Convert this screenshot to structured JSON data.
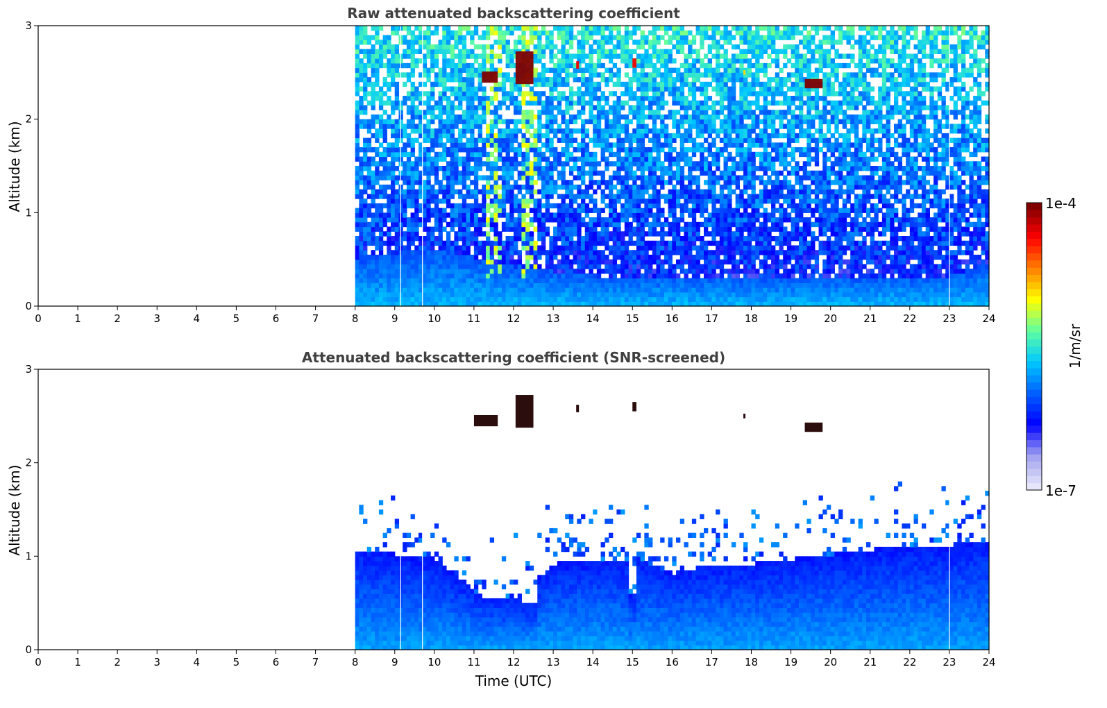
{
  "colors": {
    "background": "#ffffff",
    "title_text": "#404040",
    "axis": "#000000",
    "colormap": [
      "#e6e6fa",
      "#a0a0f0",
      "#0000ff",
      "#0060ff",
      "#00c8ff",
      "#60ffa0",
      "#ffff00",
      "#ff8000",
      "#ff0000",
      "#800000"
    ]
  },
  "chart_data": [
    {
      "type": "heatmap",
      "title": "Raw attenuated backscattering coefficient",
      "xlabel": "",
      "ylabel": "Altitude (km)",
      "xlim": [
        0,
        24
      ],
      "ylim": [
        0,
        3
      ],
      "xticks": [
        "0",
        "1",
        "2",
        "3",
        "4",
        "5",
        "6",
        "7",
        "8",
        "9",
        "10",
        "11",
        "12",
        "13",
        "14",
        "15",
        "16",
        "17",
        "18",
        "19",
        "20",
        "21",
        "22",
        "23",
        "24"
      ],
      "yticks": [
        "0",
        "1",
        "2",
        "3"
      ],
      "data_start_utc": 8,
      "data_end_utc": 24,
      "gap_lines_utc": [
        9.15,
        9.7,
        23.0
      ],
      "layers": [
        {
          "name": "boundary layer",
          "x_start": 8,
          "x_end": 24,
          "top_km": [
            0.5,
            0.55,
            0.6,
            0.5,
            0.4,
            0.35,
            0.3,
            0.3,
            0.3,
            0.3,
            0.3,
            0.3,
            0.3,
            0.3,
            0.3,
            0.3,
            0.45
          ],
          "level": 0.38
        },
        {
          "name": "noisy upper field",
          "x_start": 8,
          "x_end": 24,
          "y_bottom_km": 0.5,
          "y_top_km": 3.0,
          "level": 0.5
        }
      ],
      "clouds": [
        {
          "t0": 11.2,
          "t1": 11.6,
          "alt_km": 2.45,
          "thickness_km": 0.12,
          "level": 1.0
        },
        {
          "t0": 12.05,
          "t1": 12.5,
          "alt_km": 2.55,
          "thickness_km": 0.35,
          "level": 1.0
        },
        {
          "t0": 13.58,
          "t1": 13.65,
          "alt_km": 2.58,
          "thickness_km": 0.08,
          "level": 0.9
        },
        {
          "t0": 15.0,
          "t1": 15.1,
          "alt_km": 2.6,
          "thickness_km": 0.1,
          "level": 0.9
        },
        {
          "t0": 17.8,
          "t1": 17.85,
          "alt_km": 2.5,
          "thickness_km": 0.05,
          "level": 0.7
        },
        {
          "t0": 19.35,
          "t1": 19.8,
          "alt_km": 2.38,
          "thickness_km": 0.1,
          "level": 1.0
        }
      ],
      "plumes": [
        {
          "t0": 11.3,
          "t1": 11.6,
          "y_bottom_km": 0.3,
          "y_top_km": 3.0
        },
        {
          "t0": 12.2,
          "t1": 12.5,
          "y_bottom_km": 0.3,
          "y_top_km": 3.0
        }
      ]
    },
    {
      "type": "heatmap",
      "title": "Attenuated backscattering coefficient (SNR-screened)",
      "xlabel": "Time (UTC)",
      "ylabel": "Altitude (km)",
      "xlim": [
        0,
        24
      ],
      "ylim": [
        0,
        3
      ],
      "xticks": [
        "0",
        "1",
        "2",
        "3",
        "4",
        "5",
        "6",
        "7",
        "8",
        "9",
        "10",
        "11",
        "12",
        "13",
        "14",
        "15",
        "16",
        "17",
        "18",
        "19",
        "20",
        "21",
        "22",
        "23",
        "24"
      ],
      "yticks": [
        "0",
        "1",
        "2",
        "3"
      ],
      "data_start_utc": 8,
      "data_end_utc": 24,
      "gap_lines_utc": [
        9.15,
        9.7,
        23.0
      ],
      "screened_top_km": [
        1.05,
        1.0,
        0.95,
        0.6,
        0.55,
        0.9,
        0.95,
        0.95,
        0.8,
        0.9,
        0.9,
        0.95,
        1.0,
        1.05,
        1.1,
        1.1,
        1.15
      ],
      "notches": [
        {
          "t0": 11.2,
          "t1": 11.8,
          "depth_km": 0.55
        },
        {
          "t0": 12.2,
          "t1": 12.55,
          "depth_km": 0.48
        },
        {
          "t0": 14.9,
          "t1": 15.1,
          "depth_km": 0.6
        }
      ],
      "clouds": [
        {
          "t0": 11.0,
          "t1": 11.6,
          "alt_km": 2.45,
          "thickness_km": 0.12,
          "level": 1.0
        },
        {
          "t0": 12.05,
          "t1": 12.5,
          "alt_km": 2.55,
          "thickness_km": 0.35,
          "level": 1.0
        },
        {
          "t0": 13.58,
          "t1": 13.65,
          "alt_km": 2.58,
          "thickness_km": 0.08,
          "level": 1.0
        },
        {
          "t0": 15.0,
          "t1": 15.1,
          "alt_km": 2.6,
          "thickness_km": 0.1,
          "level": 1.0
        },
        {
          "t0": 17.8,
          "t1": 17.85,
          "alt_km": 2.5,
          "thickness_km": 0.05,
          "level": 0.9
        },
        {
          "t0": 19.35,
          "t1": 19.8,
          "alt_km": 2.38,
          "thickness_km": 0.1,
          "level": 1.0
        }
      ]
    }
  ],
  "colorbar": {
    "max_label": "1e-4",
    "min_label": "1e-7",
    "units_label": "1/m/sr",
    "scale": "log"
  }
}
